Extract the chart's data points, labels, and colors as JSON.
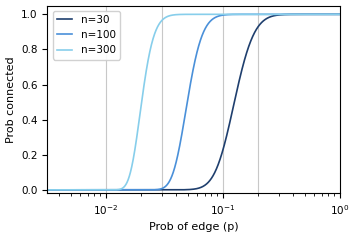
{
  "n_values": [
    30,
    100,
    300
  ],
  "colors": [
    "#1f3f6e",
    "#4a90d9",
    "#87ceeb"
  ],
  "line_labels": [
    "n=30",
    "n=100",
    "n=300"
  ],
  "p_log_range": [
    -2.5,
    0
  ],
  "num_points": 2000,
  "xlabel": "Prob of edge (p)",
  "ylabel": "Prob connected",
  "ylim": [
    -0.02,
    1.05
  ],
  "xlim_log": [
    -2.5,
    0
  ],
  "vlines": [
    0.01,
    0.03,
    0.1,
    0.2
  ],
  "vline_color": "#c8c8c8",
  "vline_lw": 0.8,
  "legend_loc": "upper left",
  "figsize": [
    3.55,
    2.38
  ],
  "dpi": 100
}
